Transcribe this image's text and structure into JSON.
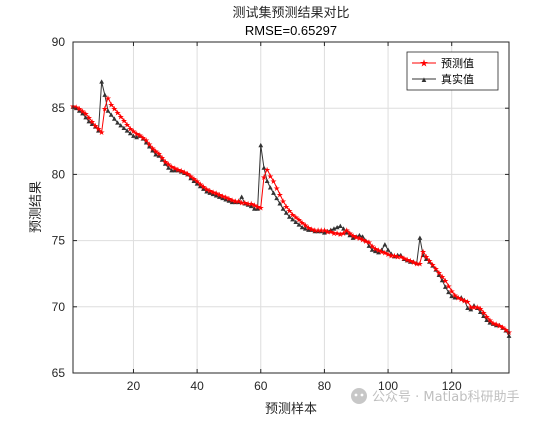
{
  "chart_data": {
    "type": "line",
    "title": "测试集预测结果对比",
    "subtitle": "RMSE=0.65297",
    "xlabel": "预测样本",
    "ylabel": "预测结果",
    "xlim": [
      1,
      138
    ],
    "ylim": [
      65,
      90
    ],
    "xticks": [
      20,
      40,
      60,
      80,
      100,
      120
    ],
    "yticks": [
      65,
      70,
      75,
      80,
      85,
      90
    ],
    "grid": true,
    "legend_position": "top-right",
    "watermark": "公众号 · Matlab科研助手",
    "x": [
      1,
      2,
      3,
      4,
      5,
      6,
      7,
      8,
      9,
      10,
      11,
      12,
      13,
      14,
      15,
      16,
      17,
      18,
      19,
      20,
      21,
      22,
      23,
      24,
      25,
      26,
      27,
      28,
      29,
      30,
      31,
      32,
      33,
      34,
      35,
      36,
      37,
      38,
      39,
      40,
      41,
      42,
      43,
      44,
      45,
      46,
      47,
      48,
      49,
      50,
      51,
      52,
      53,
      54,
      55,
      56,
      57,
      58,
      59,
      60,
      61,
      62,
      63,
      64,
      65,
      66,
      67,
      68,
      69,
      70,
      71,
      72,
      73,
      74,
      75,
      76,
      77,
      78,
      79,
      80,
      81,
      82,
      83,
      84,
      85,
      86,
      87,
      88,
      89,
      90,
      91,
      92,
      93,
      94,
      95,
      96,
      97,
      98,
      99,
      100,
      101,
      102,
      103,
      104,
      105,
      106,
      107,
      108,
      109,
      110,
      111,
      112,
      113,
      114,
      115,
      116,
      117,
      118,
      119,
      120,
      121,
      122,
      123,
      124,
      125,
      126,
      127,
      128,
      129,
      130,
      131,
      132,
      133,
      134,
      135,
      136,
      137,
      138
    ],
    "series": [
      {
        "name": "预测值",
        "color": "#ff0000",
        "marker": "star",
        "values": [
          85.2,
          85.1,
          85.0,
          84.8,
          84.6,
          84.3,
          84.0,
          83.7,
          83.5,
          83.2,
          85.0,
          85.8,
          85.3,
          85.0,
          84.7,
          84.4,
          84.1,
          83.8,
          83.5,
          83.3,
          83.1,
          83.0,
          82.8,
          82.6,
          82.3,
          82.0,
          81.8,
          81.6,
          81.3,
          81.0,
          80.8,
          80.6,
          80.5,
          80.4,
          80.3,
          80.2,
          80.1,
          79.9,
          79.7,
          79.5,
          79.3,
          79.1,
          78.9,
          78.8,
          78.7,
          78.6,
          78.5,
          78.4,
          78.3,
          78.2,
          78.1,
          78.0,
          78.0,
          77.9,
          77.9,
          77.8,
          77.8,
          77.7,
          77.6,
          77.5,
          79.8,
          80.4,
          79.9,
          79.5,
          79.0,
          78.5,
          78.0,
          77.6,
          77.3,
          77.0,
          76.8,
          76.6,
          76.4,
          76.2,
          76.0,
          75.9,
          75.8,
          75.8,
          75.8,
          75.8,
          75.7,
          75.7,
          75.6,
          75.6,
          75.5,
          75.6,
          75.8,
          75.6,
          75.4,
          75.3,
          75.2,
          75.1,
          75.0,
          74.9,
          74.6,
          74.4,
          74.3,
          74.2,
          74.1,
          74.0,
          73.9,
          73.9,
          73.8,
          73.8,
          73.7,
          73.6,
          73.5,
          73.4,
          73.3,
          73.3,
          74.2,
          73.8,
          73.5,
          73.2,
          72.9,
          72.6,
          72.3,
          72.0,
          71.6,
          71.2,
          70.9,
          70.7,
          70.6,
          70.5,
          70.4,
          70.0,
          70.0,
          70.0,
          69.9,
          69.6,
          69.3,
          69.0,
          68.8,
          68.7,
          68.6,
          68.5,
          68.3,
          68.1
        ]
      },
      {
        "name": "真实值",
        "color": "#333333",
        "marker": "triangle",
        "values": [
          85.1,
          85.0,
          84.8,
          84.6,
          84.3,
          84.0,
          83.8,
          83.6,
          83.3,
          87.0,
          86.0,
          84.8,
          84.5,
          84.2,
          83.9,
          83.7,
          83.5,
          83.3,
          83.1,
          82.9,
          82.8,
          82.9,
          82.7,
          82.4,
          82.1,
          81.8,
          81.5,
          81.4,
          81.1,
          80.8,
          80.5,
          80.3,
          80.3,
          80.3,
          80.2,
          80.1,
          80.0,
          79.7,
          79.5,
          79.3,
          79.1,
          78.9,
          78.7,
          78.6,
          78.5,
          78.4,
          78.3,
          78.2,
          78.1,
          78.0,
          77.9,
          77.9,
          77.9,
          78.3,
          77.8,
          77.7,
          77.6,
          77.4,
          77.4,
          82.2,
          80.5,
          79.5,
          79.0,
          78.6,
          78.2,
          77.8,
          77.4,
          77.1,
          76.8,
          76.6,
          76.4,
          76.2,
          76.0,
          75.9,
          75.8,
          75.8,
          75.7,
          75.7,
          75.7,
          75.6,
          75.7,
          75.8,
          75.9,
          76.0,
          76.1,
          75.9,
          75.6,
          75.4,
          75.2,
          75.3,
          75.4,
          75.3,
          75.0,
          74.6,
          74.3,
          74.2,
          74.1,
          74.3,
          74.7,
          74.3,
          74.0,
          73.8,
          73.9,
          73.9,
          73.6,
          73.5,
          73.4,
          73.4,
          73.3,
          75.2,
          73.9,
          73.6,
          73.4,
          73.1,
          72.8,
          72.4,
          72.0,
          71.5,
          71.1,
          70.8,
          70.7,
          70.7,
          70.7,
          70.5,
          69.9,
          69.8,
          70.1,
          69.9,
          69.6,
          69.3,
          69.0,
          68.8,
          68.7,
          68.6,
          68.6,
          68.4,
          68.2,
          67.8
        ]
      }
    ]
  }
}
